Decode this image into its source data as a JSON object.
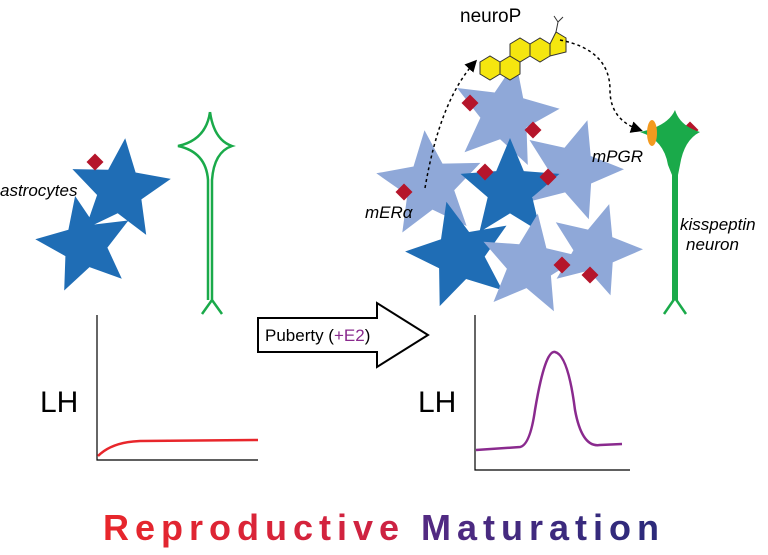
{
  "labels": {
    "astrocytes": "astrocytes",
    "neurosteroid": "neuroP",
    "receptor_er": "mERα",
    "receptor_pgr": "mPGR",
    "neuron_line1": "kisspeptin",
    "neuron_line2": "neuron"
  },
  "left_graph": {
    "y_label": "LH"
  },
  "right_graph": {
    "y_label": "LH"
  },
  "arrow": {
    "text_before": "Puberty (",
    "text_highlight": "+E2",
    "text_after": ")"
  },
  "footer": {
    "word1": "Reproductive",
    "word2": "Maturation"
  }
}
